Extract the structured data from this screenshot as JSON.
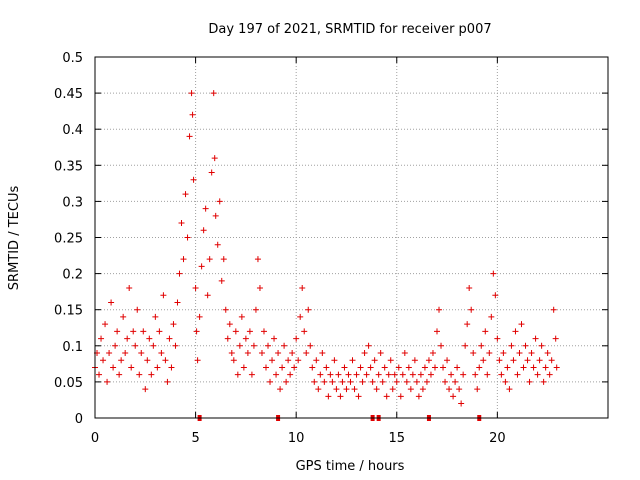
{
  "chart_data": {
    "type": "scatter",
    "title": "Day 197 of 2021, SRMTID for receiver p007",
    "xlabel": "GPS time / hours",
    "ylabel": "SRMTID / TECUs",
    "xlim": [
      0,
      25.5
    ],
    "ylim": [
      0,
      0.5
    ],
    "x_ticks": [
      0,
      5,
      10,
      15,
      20
    ],
    "x_tick_labels": [
      "0",
      "5",
      "10",
      "15",
      "20"
    ],
    "y_ticks": [
      0,
      0.05,
      0.1,
      0.15,
      0.2,
      0.25,
      0.3,
      0.35,
      0.4,
      0.45,
      0.5
    ],
    "y_tick_labels": [
      "0",
      "0.05",
      "0.1",
      "0.15",
      "0.2",
      "0.25",
      "0.3",
      "0.35",
      "0.4",
      "0.45",
      "0.5"
    ],
    "grid": true,
    "marker": "+",
    "series": [
      {
        "name": "SRMTID",
        "color": "#e00000",
        "points": [
          [
            0.0,
            0.07
          ],
          [
            0.1,
            0.09
          ],
          [
            0.2,
            0.06
          ],
          [
            0.3,
            0.11
          ],
          [
            0.4,
            0.08
          ],
          [
            0.5,
            0.13
          ],
          [
            0.6,
            0.05
          ],
          [
            0.7,
            0.09
          ],
          [
            0.8,
            0.16
          ],
          [
            0.9,
            0.07
          ],
          [
            1.0,
            0.1
          ],
          [
            1.1,
            0.12
          ],
          [
            1.2,
            0.06
          ],
          [
            1.3,
            0.08
          ],
          [
            1.4,
            0.14
          ],
          [
            1.5,
            0.09
          ],
          [
            1.6,
            0.11
          ],
          [
            1.7,
            0.18
          ],
          [
            1.8,
            0.07
          ],
          [
            1.9,
            0.12
          ],
          [
            2.0,
            0.1
          ],
          [
            2.1,
            0.15
          ],
          [
            2.2,
            0.06
          ],
          [
            2.3,
            0.09
          ],
          [
            2.4,
            0.12
          ],
          [
            2.5,
            0.04
          ],
          [
            2.6,
            0.08
          ],
          [
            2.7,
            0.11
          ],
          [
            2.8,
            0.06
          ],
          [
            2.9,
            0.1
          ],
          [
            3.0,
            0.14
          ],
          [
            3.1,
            0.07
          ],
          [
            3.2,
            0.12
          ],
          [
            3.3,
            0.09
          ],
          [
            3.4,
            0.17
          ],
          [
            3.5,
            0.08
          ],
          [
            3.6,
            0.05
          ],
          [
            3.7,
            0.11
          ],
          [
            3.8,
            0.07
          ],
          [
            3.9,
            0.13
          ],
          [
            4.0,
            0.1
          ],
          [
            4.1,
            0.16
          ],
          [
            4.2,
            0.2
          ],
          [
            4.3,
            0.27
          ],
          [
            4.4,
            0.22
          ],
          [
            4.5,
            0.31
          ],
          [
            4.6,
            0.25
          ],
          [
            4.7,
            0.39
          ],
          [
            4.8,
            0.45
          ],
          [
            4.85,
            0.42
          ],
          [
            4.9,
            0.33
          ],
          [
            5.0,
            0.18
          ],
          [
            5.05,
            0.12
          ],
          [
            5.1,
            0.08
          ],
          [
            5.2,
            0.14
          ],
          [
            5.3,
            0.21
          ],
          [
            5.4,
            0.26
          ],
          [
            5.5,
            0.29
          ],
          [
            5.6,
            0.17
          ],
          [
            5.7,
            0.22
          ],
          [
            5.8,
            0.34
          ],
          [
            5.9,
            0.45
          ],
          [
            5.95,
            0.36
          ],
          [
            6.0,
            0.28
          ],
          [
            6.1,
            0.24
          ],
          [
            6.2,
            0.3
          ],
          [
            6.3,
            0.19
          ],
          [
            6.4,
            0.22
          ],
          [
            6.5,
            0.15
          ],
          [
            6.6,
            0.11
          ],
          [
            6.7,
            0.13
          ],
          [
            6.8,
            0.09
          ],
          [
            6.9,
            0.08
          ],
          [
            7.0,
            0.12
          ],
          [
            7.1,
            0.06
          ],
          [
            7.2,
            0.1
          ],
          [
            7.3,
            0.14
          ],
          [
            7.4,
            0.07
          ],
          [
            7.5,
            0.11
          ],
          [
            7.6,
            0.09
          ],
          [
            7.7,
            0.12
          ],
          [
            7.8,
            0.06
          ],
          [
            7.9,
            0.1
          ],
          [
            8.0,
            0.15
          ],
          [
            8.1,
            0.22
          ],
          [
            8.2,
            0.18
          ],
          [
            8.3,
            0.09
          ],
          [
            8.4,
            0.12
          ],
          [
            8.5,
            0.07
          ],
          [
            8.6,
            0.1
          ],
          [
            8.7,
            0.05
          ],
          [
            8.8,
            0.08
          ],
          [
            8.9,
            0.11
          ],
          [
            9.0,
            0.06
          ],
          [
            9.1,
            0.09
          ],
          [
            9.2,
            0.04
          ],
          [
            9.3,
            0.07
          ],
          [
            9.4,
            0.1
          ],
          [
            9.5,
            0.05
          ],
          [
            9.6,
            0.08
          ],
          [
            9.7,
            0.06
          ],
          [
            9.8,
            0.09
          ],
          [
            9.9,
            0.07
          ],
          [
            10.0,
            0.11
          ],
          [
            10.1,
            0.08
          ],
          [
            10.2,
            0.14
          ],
          [
            10.3,
            0.18
          ],
          [
            10.4,
            0.12
          ],
          [
            10.5,
            0.09
          ],
          [
            10.6,
            0.15
          ],
          [
            10.7,
            0.1
          ],
          [
            10.8,
            0.07
          ],
          [
            10.9,
            0.05
          ],
          [
            11.0,
            0.08
          ],
          [
            11.1,
            0.04
          ],
          [
            11.2,
            0.06
          ],
          [
            11.3,
            0.09
          ],
          [
            11.4,
            0.05
          ],
          [
            11.5,
            0.07
          ],
          [
            11.6,
            0.03
          ],
          [
            11.7,
            0.06
          ],
          [
            11.8,
            0.05
          ],
          [
            11.9,
            0.08
          ],
          [
            12.0,
            0.04
          ],
          [
            12.1,
            0.06
          ],
          [
            12.2,
            0.03
          ],
          [
            12.3,
            0.05
          ],
          [
            12.4,
            0.07
          ],
          [
            12.5,
            0.04
          ],
          [
            12.6,
            0.06
          ],
          [
            12.7,
            0.05
          ],
          [
            12.8,
            0.08
          ],
          [
            12.9,
            0.04
          ],
          [
            13.0,
            0.06
          ],
          [
            13.1,
            0.03
          ],
          [
            13.2,
            0.07
          ],
          [
            13.3,
            0.05
          ],
          [
            13.4,
            0.09
          ],
          [
            13.5,
            0.06
          ],
          [
            13.6,
            0.1
          ],
          [
            13.7,
            0.07
          ],
          [
            13.8,
            0.05
          ],
          [
            13.9,
            0.08
          ],
          [
            14.0,
            0.04
          ],
          [
            14.1,
            0.06
          ],
          [
            14.2,
            0.09
          ],
          [
            14.3,
            0.05
          ],
          [
            14.4,
            0.07
          ],
          [
            14.5,
            0.03
          ],
          [
            14.6,
            0.06
          ],
          [
            14.7,
            0.08
          ],
          [
            14.8,
            0.04
          ],
          [
            14.9,
            0.06
          ],
          [
            15.0,
            0.05
          ],
          [
            15.1,
            0.07
          ],
          [
            15.2,
            0.03
          ],
          [
            15.3,
            0.06
          ],
          [
            15.4,
            0.09
          ],
          [
            15.5,
            0.05
          ],
          [
            15.6,
            0.07
          ],
          [
            15.7,
            0.04
          ],
          [
            15.8,
            0.06
          ],
          [
            15.9,
            0.08
          ],
          [
            16.0,
            0.05
          ],
          [
            16.1,
            0.03
          ],
          [
            16.2,
            0.06
          ],
          [
            16.3,
            0.04
          ],
          [
            16.4,
            0.07
          ],
          [
            16.5,
            0.05
          ],
          [
            16.6,
            0.08
          ],
          [
            16.7,
            0.06
          ],
          [
            16.8,
            0.09
          ],
          [
            16.9,
            0.07
          ],
          [
            17.0,
            0.12
          ],
          [
            17.1,
            0.15
          ],
          [
            17.2,
            0.1
          ],
          [
            17.3,
            0.07
          ],
          [
            17.4,
            0.05
          ],
          [
            17.5,
            0.08
          ],
          [
            17.6,
            0.04
          ],
          [
            17.7,
            0.06
          ],
          [
            17.8,
            0.03
          ],
          [
            17.9,
            0.05
          ],
          [
            18.0,
            0.07
          ],
          [
            18.1,
            0.04
          ],
          [
            18.2,
            0.02
          ],
          [
            18.3,
            0.06
          ],
          [
            18.4,
            0.1
          ],
          [
            18.5,
            0.13
          ],
          [
            18.6,
            0.18
          ],
          [
            18.7,
            0.15
          ],
          [
            18.8,
            0.09
          ],
          [
            18.9,
            0.06
          ],
          [
            19.0,
            0.04
          ],
          [
            19.1,
            0.07
          ],
          [
            19.2,
            0.1
          ],
          [
            19.3,
            0.08
          ],
          [
            19.4,
            0.12
          ],
          [
            19.5,
            0.06
          ],
          [
            19.6,
            0.09
          ],
          [
            19.7,
            0.14
          ],
          [
            19.8,
            0.2
          ],
          [
            19.9,
            0.17
          ],
          [
            20.0,
            0.11
          ],
          [
            20.1,
            0.08
          ],
          [
            20.2,
            0.06
          ],
          [
            20.3,
            0.09
          ],
          [
            20.4,
            0.05
          ],
          [
            20.5,
            0.07
          ],
          [
            20.6,
            0.04
          ],
          [
            20.7,
            0.1
          ],
          [
            20.8,
            0.08
          ],
          [
            20.9,
            0.12
          ],
          [
            21.0,
            0.06
          ],
          [
            21.1,
            0.09
          ],
          [
            21.2,
            0.13
          ],
          [
            21.3,
            0.07
          ],
          [
            21.4,
            0.1
          ],
          [
            21.5,
            0.08
          ],
          [
            21.6,
            0.05
          ],
          [
            21.7,
            0.09
          ],
          [
            21.8,
            0.07
          ],
          [
            21.9,
            0.11
          ],
          [
            22.0,
            0.06
          ],
          [
            22.1,
            0.08
          ],
          [
            22.2,
            0.1
          ],
          [
            22.3,
            0.05
          ],
          [
            22.4,
            0.07
          ],
          [
            22.5,
            0.09
          ],
          [
            22.6,
            0.06
          ],
          [
            22.7,
            0.08
          ],
          [
            22.8,
            0.15
          ],
          [
            22.9,
            0.11
          ],
          [
            22.95,
            0.07
          ]
        ]
      }
    ],
    "baseline_markers": [
      5.2,
      9.1,
      13.8,
      14.1,
      16.6,
      19.1
    ]
  }
}
